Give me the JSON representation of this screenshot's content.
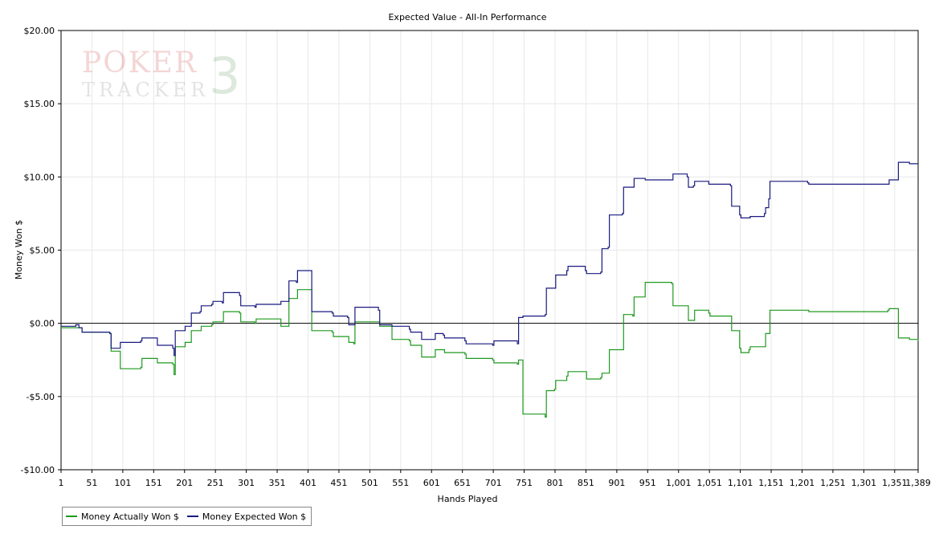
{
  "watermark": {
    "logo_line1": "POKER",
    "logo_line2": "TRACKER",
    "logo_version": "3"
  },
  "chart_data": {
    "type": "line",
    "title": "Expected Value - All-In Performance",
    "xlabel": "Hands Played",
    "ylabel": "Money Won $",
    "xlim": [
      1,
      1389
    ],
    "ylim": [
      -10,
      20
    ],
    "x_ticks": [
      1,
      51,
      101,
      151,
      201,
      251,
      301,
      351,
      401,
      451,
      501,
      551,
      601,
      651,
      701,
      751,
      801,
      851,
      901,
      951,
      1001,
      1051,
      1101,
      1151,
      1201,
      1251,
      1301,
      1351,
      1389
    ],
    "x_tick_labels": [
      "1",
      "51",
      "101",
      "151",
      "201",
      "251",
      "301",
      "351",
      "401",
      "451",
      "501",
      "551",
      "601",
      "651",
      "701",
      "751",
      "801",
      "851",
      "901",
      "951",
      "1,001",
      "1,051",
      "1,101",
      "1,151",
      "1,201",
      "1,251",
      "1,301",
      "1,351",
      "1,389"
    ],
    "y_ticks": [
      -10,
      -5,
      0,
      5,
      10,
      15,
      20
    ],
    "y_tick_labels": [
      "-$10.00",
      "-$5.00",
      "$0.00",
      "$5.00",
      "$10.00",
      "$15.00",
      "$20.00"
    ],
    "grid": true,
    "legend_position": "bottom-left",
    "series": [
      {
        "name": "Money Actually Won $",
        "color": "#1f9a1f",
        "points": [
          [
            1,
            -0.3
          ],
          [
            30,
            -0.3
          ],
          [
            35,
            -0.6
          ],
          [
            80,
            -0.7
          ],
          [
            82,
            -1.9
          ],
          [
            95,
            -1.9
          ],
          [
            97,
            -3.1
          ],
          [
            130,
            -3.0
          ],
          [
            132,
            -2.4
          ],
          [
            155,
            -2.4
          ],
          [
            157,
            -2.7
          ],
          [
            182,
            -2.8
          ],
          [
            184,
            -3.5
          ],
          [
            186,
            -1.6
          ],
          [
            200,
            -1.6
          ],
          [
            202,
            -1.3
          ],
          [
            210,
            -1.3
          ],
          [
            212,
            -0.5
          ],
          [
            226,
            -0.5
          ],
          [
            228,
            -0.2
          ],
          [
            245,
            -0.1
          ],
          [
            247,
            0.1
          ],
          [
            262,
            0.1
          ],
          [
            264,
            0.8
          ],
          [
            290,
            0.7
          ],
          [
            292,
            0.1
          ],
          [
            315,
            0.0
          ],
          [
            317,
            0.3
          ],
          [
            355,
            0.3
          ],
          [
            357,
            -0.2
          ],
          [
            368,
            -0.2
          ],
          [
            370,
            1.7
          ],
          [
            382,
            1.7
          ],
          [
            384,
            2.3
          ],
          [
            405,
            2.3
          ],
          [
            407,
            -0.5
          ],
          [
            440,
            -0.6
          ],
          [
            442,
            -0.9
          ],
          [
            465,
            -0.9
          ],
          [
            467,
            -1.3
          ],
          [
            475,
            -1.4
          ],
          [
            477,
            0.1
          ],
          [
            515,
            0.1
          ],
          [
            517,
            -0.2
          ],
          [
            535,
            -0.2
          ],
          [
            537,
            -1.1
          ],
          [
            565,
            -1.2
          ],
          [
            567,
            -1.5
          ],
          [
            583,
            -1.5
          ],
          [
            585,
            -2.3
          ],
          [
            605,
            -2.3
          ],
          [
            607,
            -1.8
          ],
          [
            620,
            -1.8
          ],
          [
            622,
            -2.0
          ],
          [
            655,
            -2.1
          ],
          [
            657,
            -2.4
          ],
          [
            700,
            -2.5
          ],
          [
            702,
            -2.7
          ],
          [
            740,
            -2.8
          ],
          [
            742,
            -2.5
          ],
          [
            747,
            -2.5
          ],
          [
            749,
            -6.2
          ],
          [
            785,
            -6.4
          ],
          [
            787,
            -4.6
          ],
          [
            800,
            -4.5
          ],
          [
            802,
            -3.9
          ],
          [
            820,
            -3.6
          ],
          [
            822,
            -3.3
          ],
          [
            850,
            -3.3
          ],
          [
            852,
            -3.8
          ],
          [
            875,
            -3.7
          ],
          [
            877,
            -3.4
          ],
          [
            887,
            -3.4
          ],
          [
            889,
            -1.8
          ],
          [
            910,
            -1.8
          ],
          [
            912,
            0.6
          ],
          [
            927,
            0.5
          ],
          [
            929,
            1.8
          ],
          [
            945,
            1.8
          ],
          [
            947,
            2.8
          ],
          [
            990,
            2.7
          ],
          [
            992,
            1.2
          ],
          [
            1015,
            1.2
          ],
          [
            1017,
            0.2
          ],
          [
            1025,
            0.2
          ],
          [
            1027,
            0.9
          ],
          [
            1050,
            0.7
          ],
          [
            1052,
            0.5
          ],
          [
            1085,
            0.5
          ],
          [
            1087,
            -0.5
          ],
          [
            1100,
            -1.7
          ],
          [
            1102,
            -2.0
          ],
          [
            1115,
            -1.8
          ],
          [
            1117,
            -1.6
          ],
          [
            1140,
            -1.6
          ],
          [
            1142,
            -0.7
          ],
          [
            1147,
            -0.7
          ],
          [
            1149,
            0.9
          ],
          [
            1210,
            0.9
          ],
          [
            1212,
            0.8
          ],
          [
            1340,
            0.9
          ],
          [
            1342,
            1.0
          ],
          [
            1355,
            1.0
          ],
          [
            1357,
            -1.0
          ],
          [
            1375,
            -1.1
          ],
          [
            1389,
            -1.2
          ]
        ]
      },
      {
        "name": "Money Expected Won $",
        "color": "#1a1a80",
        "points": [
          [
            1,
            -0.2
          ],
          [
            25,
            -0.1
          ],
          [
            30,
            -0.3
          ],
          [
            35,
            -0.6
          ],
          [
            80,
            -0.7
          ],
          [
            82,
            -1.7
          ],
          [
            95,
            -1.7
          ],
          [
            97,
            -1.3
          ],
          [
            130,
            -1.2
          ],
          [
            132,
            -1.0
          ],
          [
            155,
            -1.0
          ],
          [
            157,
            -1.5
          ],
          [
            182,
            -1.7
          ],
          [
            184,
            -2.2
          ],
          [
            186,
            -0.5
          ],
          [
            200,
            -0.5
          ],
          [
            202,
            -0.2
          ],
          [
            210,
            -0.2
          ],
          [
            212,
            0.7
          ],
          [
            226,
            0.8
          ],
          [
            228,
            1.2
          ],
          [
            245,
            1.3
          ],
          [
            247,
            1.5
          ],
          [
            262,
            1.4
          ],
          [
            264,
            2.1
          ],
          [
            290,
            1.9
          ],
          [
            292,
            1.2
          ],
          [
            315,
            1.1
          ],
          [
            317,
            1.3
          ],
          [
            355,
            1.3
          ],
          [
            357,
            1.5
          ],
          [
            368,
            1.5
          ],
          [
            370,
            2.9
          ],
          [
            382,
            2.8
          ],
          [
            384,
            3.6
          ],
          [
            405,
            3.6
          ],
          [
            407,
            0.8
          ],
          [
            440,
            0.7
          ],
          [
            442,
            0.5
          ],
          [
            465,
            0.4
          ],
          [
            467,
            -0.1
          ],
          [
            475,
            -0.1
          ],
          [
            477,
            1.1
          ],
          [
            515,
            0.9
          ],
          [
            517,
            -0.1
          ],
          [
            535,
            -0.1
          ],
          [
            537,
            -0.2
          ],
          [
            565,
            -0.4
          ],
          [
            567,
            -0.6
          ],
          [
            583,
            -0.6
          ],
          [
            585,
            -1.1
          ],
          [
            605,
            -1.1
          ],
          [
            607,
            -0.7
          ],
          [
            620,
            -0.8
          ],
          [
            622,
            -1.0
          ],
          [
            655,
            -1.2
          ],
          [
            657,
            -1.4
          ],
          [
            700,
            -1.5
          ],
          [
            702,
            -1.2
          ],
          [
            740,
            -1.4
          ],
          [
            742,
            0.4
          ],
          [
            747,
            0.4
          ],
          [
            749,
            0.5
          ],
          [
            785,
            0.6
          ],
          [
            787,
            2.4
          ],
          [
            800,
            2.4
          ],
          [
            802,
            3.3
          ],
          [
            820,
            3.6
          ],
          [
            822,
            3.9
          ],
          [
            850,
            3.6
          ],
          [
            852,
            3.4
          ],
          [
            875,
            3.5
          ],
          [
            877,
            5.1
          ],
          [
            887,
            5.2
          ],
          [
            889,
            7.4
          ],
          [
            910,
            7.5
          ],
          [
            912,
            9.3
          ],
          [
            927,
            9.3
          ],
          [
            929,
            9.9
          ],
          [
            945,
            9.9
          ],
          [
            947,
            9.8
          ],
          [
            990,
            9.8
          ],
          [
            992,
            10.2
          ],
          [
            1015,
            10.0
          ],
          [
            1017,
            9.3
          ],
          [
            1025,
            9.4
          ],
          [
            1027,
            9.7
          ],
          [
            1050,
            9.5
          ],
          [
            1052,
            9.5
          ],
          [
            1085,
            9.4
          ],
          [
            1087,
            8.0
          ],
          [
            1100,
            7.4
          ],
          [
            1102,
            7.2
          ],
          [
            1115,
            7.2
          ],
          [
            1117,
            7.3
          ],
          [
            1140,
            7.5
          ],
          [
            1142,
            7.9
          ],
          [
            1147,
            8.5
          ],
          [
            1149,
            9.7
          ],
          [
            1210,
            9.6
          ],
          [
            1212,
            9.5
          ],
          [
            1340,
            9.5
          ],
          [
            1342,
            9.8
          ],
          [
            1355,
            9.8
          ],
          [
            1357,
            11.0
          ],
          [
            1375,
            10.9
          ],
          [
            1389,
            10.9
          ]
        ]
      }
    ]
  }
}
